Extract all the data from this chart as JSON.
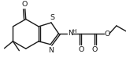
{
  "bg_color": "#ffffff",
  "line_color": "#1a1a1a",
  "lw": 1.0,
  "fs": 5.8,
  "xlim": [
    0,
    160
  ],
  "ylim": [
    0,
    91
  ],
  "figw": 1.6,
  "figh": 0.91,
  "dpi": 100
}
